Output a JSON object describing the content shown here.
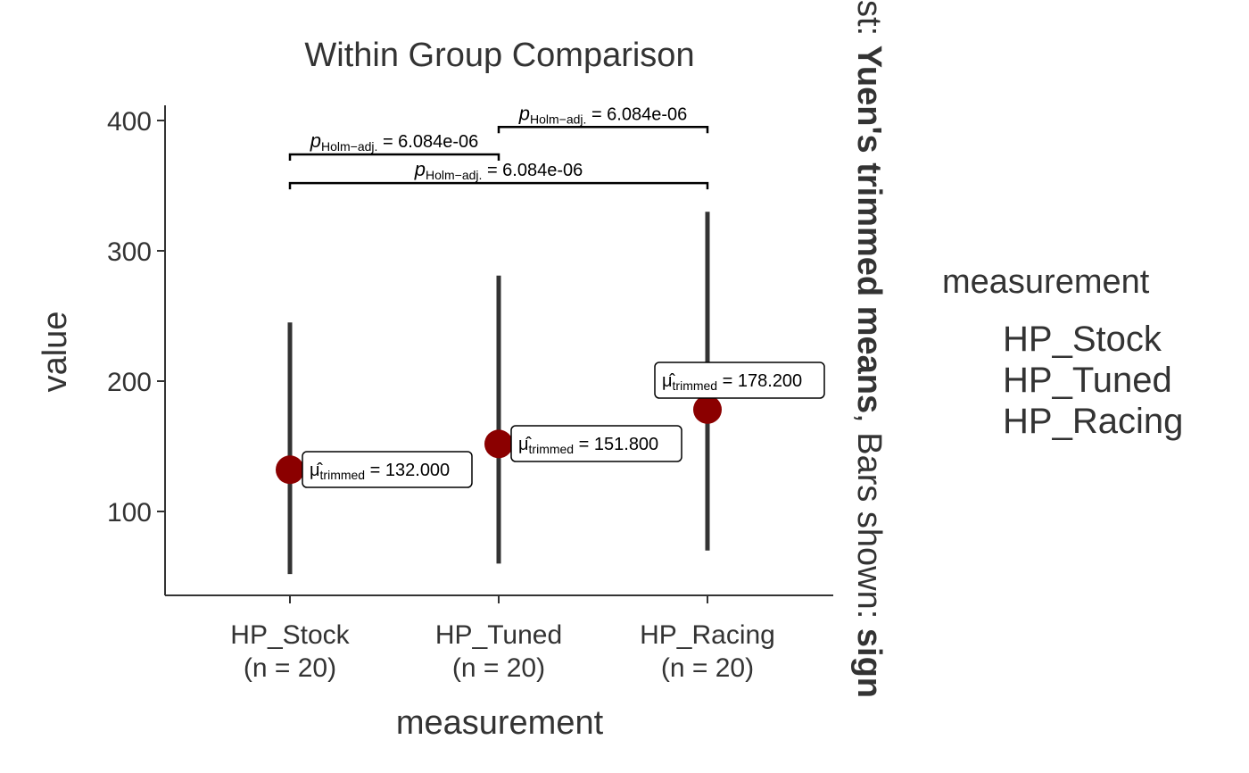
{
  "chart_data": {
    "type": "scatter",
    "title": "Within Group Comparison",
    "xlabel": "measurement",
    "ylabel": "value",
    "ylim": [
      37,
      410
    ],
    "yticks": [
      100,
      200,
      300,
      400
    ],
    "grid": false,
    "categories": [
      {
        "name": "HP_Stock",
        "n_label": "(n = 20)"
      },
      {
        "name": "HP_Tuned",
        "n_label": "(n = 20)"
      },
      {
        "name": "HP_Racing",
        "n_label": "(n = 20)"
      }
    ],
    "points": [
      {
        "category": "HP_Stock",
        "mean": 132.0,
        "min": 52,
        "max": 245,
        "label_value": "= 132.000"
      },
      {
        "category": "HP_Tuned",
        "mean": 151.8,
        "min": 60,
        "max": 281,
        "label_value": "= 151.800"
      },
      {
        "category": "HP_Racing",
        "mean": 178.2,
        "min": 70,
        "max": 330,
        "label_value": "= 178.200"
      }
    ],
    "label_prefix": "μ̂",
    "label_subscript": "trimmed",
    "point_color": "#8b0000",
    "bar_color": "#333333",
    "comparisons": [
      {
        "from": "HP_Stock",
        "to": "HP_Tuned",
        "y": 374,
        "p_symbol": "p",
        "p_subscript": "Holm−adj.",
        "p_value": "= 6.084e-06"
      },
      {
        "from": "HP_Tuned",
        "to": "HP_Racing",
        "y": 395,
        "p_symbol": "p",
        "p_subscript": "Holm−adj.",
        "p_value": "= 6.084e-06"
      },
      {
        "from": "HP_Stock",
        "to": "HP_Racing",
        "y": 352,
        "p_symbol": "p",
        "p_subscript": "Holm−adj.",
        "p_value": "= 6.084e-06"
      }
    ],
    "legend": {
      "title": "measurement",
      "entries": [
        "HP_Stock",
        "HP_Tuned",
        "HP_Racing"
      ],
      "placement": "right"
    },
    "caption": {
      "part1": "st: ",
      "bold1": "Yuen's trimmed means",
      "part2": ", Bars shown: ",
      "bold2": "sign"
    }
  }
}
